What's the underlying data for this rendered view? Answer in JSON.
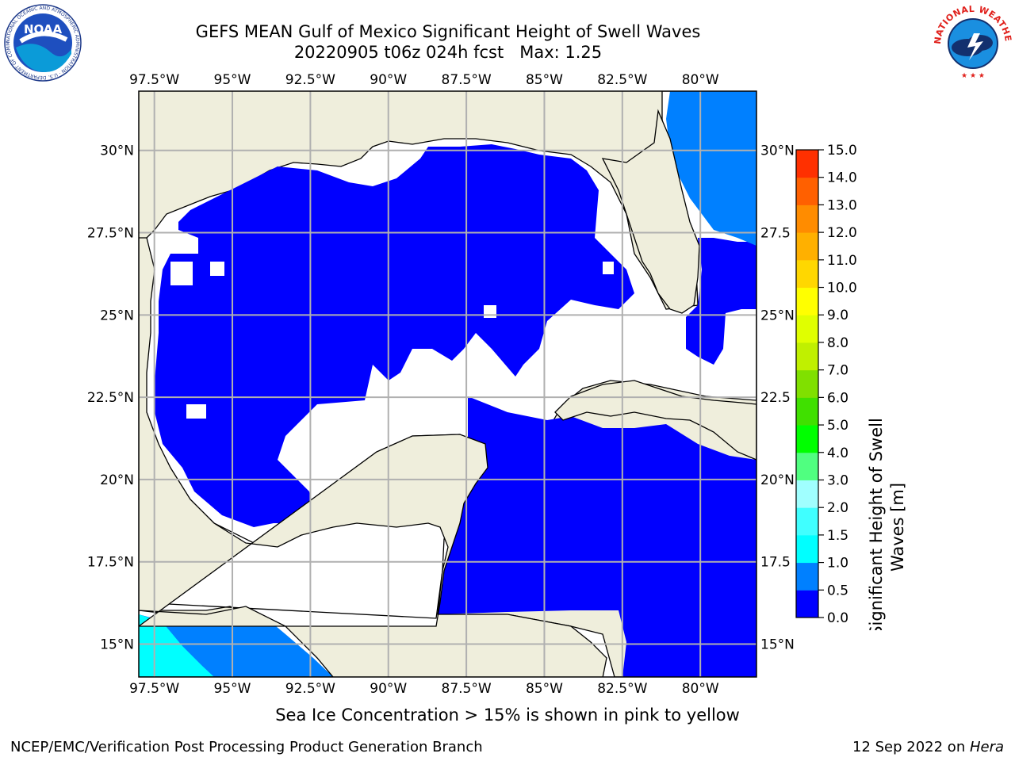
{
  "header": {
    "title_line1": "GEFS MEAN Gulf of Mexico Significant Height of Swell Waves",
    "title_line2": "20220905 t06z 024h fcst   Max: 1.25"
  },
  "logos": {
    "noaa_text": "NOAA",
    "noaa_ring": "NATIONAL OCEANIC AND ATMOSPHERIC ADMINISTRATION · U.S. DEPARTMENT OF COMMERCE",
    "nws_ring": "NATIONAL WEATHER SERVICE"
  },
  "map": {
    "lon_labels": [
      "97.5°W",
      "95°W",
      "92.5°W",
      "90°W",
      "87.5°W",
      "85°W",
      "82.5°W",
      "80°W"
    ],
    "lon_values": [
      -97.5,
      -95,
      -92.5,
      -90,
      -87.5,
      -85,
      -82.5,
      -80
    ],
    "lat_labels": [
      "30°N",
      "27.5°N",
      "25°N",
      "22.5°N",
      "20°N",
      "17.5°N",
      "15°N"
    ],
    "lat_values": [
      30,
      27.5,
      25,
      22.5,
      20,
      17.5,
      15
    ],
    "lat_labels_right": [
      "30°N",
      "27.5",
      "25°N",
      "22.5",
      "20°N",
      "17.5",
      "15°N"
    ],
    "extent": {
      "lon_min": -98,
      "lon_max": -78.2,
      "lat_min": 14,
      "lat_max": 31.8
    },
    "colors": {
      "land": "#efeedc",
      "water_band_0": "#0000ff",
      "water_band_1": "#0080ff",
      "water_band_2": "#00ffff",
      "no_swell": "#ffffff",
      "grid": "#b0b0b0"
    }
  },
  "colorbar": {
    "ticks": [
      "0.0",
      "0.5",
      "1.0",
      "1.5",
      "2.0",
      "3.0",
      "4.0",
      "5.0",
      "6.0",
      "7.0",
      "8.0",
      "9.0",
      "10.0",
      "11.0",
      "12.0",
      "13.0",
      "14.0",
      "15.0"
    ],
    "colors": [
      "#0000ff",
      "#0080ff",
      "#00ffff",
      "#40ffff",
      "#a0ffff",
      "#50ff80",
      "#00ff00",
      "#40e000",
      "#80e000",
      "#c0f000",
      "#e0ff00",
      "#ffff00",
      "#ffd700",
      "#ffb000",
      "#ff8c00",
      "#ff6000",
      "#ff3000",
      "#ff0000"
    ],
    "label_line1": "Significant Height of Swell",
    "label_line2": "Waves [m]"
  },
  "note": "Sea Ice Concentration > 15% is shown in pink to yellow",
  "footer": {
    "left": "NCEP/EMC/Verification Post Processing Product Generation Branch",
    "date": "12 Sep 2022 on ",
    "machine": "Hera"
  }
}
